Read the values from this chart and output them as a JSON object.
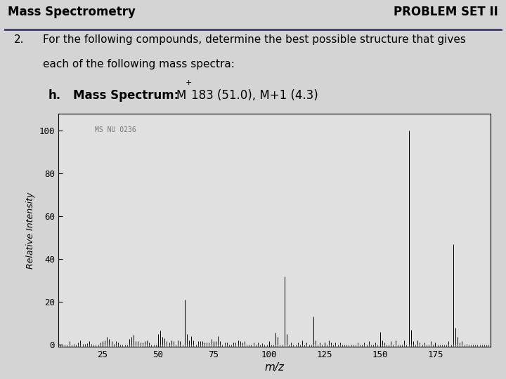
{
  "title_left": "Mass Spectrometry",
  "title_right": "PROBLEM SET II",
  "problem_number": "2.",
  "problem_text_line1": "For the following compounds, determine the best possible structure that gives",
  "problem_text_line2": "each of the following mass spectra:",
  "sub_label": "h.",
  "watermark": "MS NU 0236",
  "ylabel": "Relative Intensity",
  "xlabel": "m/z",
  "xlim": [
    5,
    200
  ],
  "ylim": [
    -1,
    108
  ],
  "ytick_labels": [
    "0",
    "20",
    "40",
    "60",
    "80",
    "100"
  ],
  "ytick_vals": [
    0,
    20,
    40,
    60,
    80,
    100
  ],
  "xtick_vals": [
    25,
    50,
    75,
    100,
    125,
    150,
    175
  ],
  "bg_color": "#d4d4d4",
  "plot_bg_color": "#e0e0e0",
  "header_line_color": "#3a3a7a",
  "peaks": [
    [
      10,
      1.5
    ],
    [
      12,
      0.5
    ],
    [
      14,
      1.0
    ],
    [
      15,
      2.0
    ],
    [
      16,
      0.3
    ],
    [
      17,
      0.5
    ],
    [
      18,
      0.8
    ],
    [
      19,
      1.5
    ],
    [
      20,
      0.5
    ],
    [
      24,
      1.0
    ],
    [
      25,
      1.5
    ],
    [
      26,
      2.0
    ],
    [
      27,
      3.5
    ],
    [
      28,
      2.5
    ],
    [
      29,
      1.5
    ],
    [
      30,
      0.5
    ],
    [
      31,
      1.5
    ],
    [
      32,
      1.0
    ],
    [
      37,
      2.5
    ],
    [
      38,
      3.5
    ],
    [
      39,
      4.5
    ],
    [
      40,
      1.5
    ],
    [
      41,
      1.5
    ],
    [
      42,
      1.0
    ],
    [
      43,
      1.0
    ],
    [
      44,
      1.5
    ],
    [
      45,
      2.0
    ],
    [
      46,
      1.0
    ],
    [
      50,
      5.0
    ],
    [
      51,
      6.5
    ],
    [
      52,
      3.5
    ],
    [
      53,
      3.0
    ],
    [
      54,
      1.5
    ],
    [
      55,
      1.0
    ],
    [
      56,
      2.0
    ],
    [
      57,
      1.5
    ],
    [
      59,
      2.0
    ],
    [
      60,
      1.5
    ],
    [
      62,
      21.0
    ],
    [
      63,
      5.0
    ],
    [
      64,
      2.0
    ],
    [
      65,
      4.0
    ],
    [
      66,
      2.0
    ],
    [
      68,
      1.5
    ],
    [
      69,
      1.5
    ],
    [
      70,
      1.5
    ],
    [
      71,
      1.0
    ],
    [
      72,
      1.0
    ],
    [
      73,
      1.0
    ],
    [
      74,
      2.5
    ],
    [
      75,
      1.5
    ],
    [
      76,
      1.5
    ],
    [
      77,
      4.0
    ],
    [
      78,
      1.5
    ],
    [
      80,
      1.0
    ],
    [
      81,
      1.0
    ],
    [
      84,
      1.0
    ],
    [
      85,
      1.0
    ],
    [
      86,
      2.0
    ],
    [
      87,
      1.5
    ],
    [
      88,
      1.0
    ],
    [
      89,
      1.5
    ],
    [
      93,
      1.0
    ],
    [
      95,
      1.0
    ],
    [
      97,
      0.8
    ],
    [
      100,
      1.5
    ],
    [
      103,
      5.5
    ],
    [
      104,
      3.5
    ],
    [
      107,
      32.0
    ],
    [
      108,
      5.0
    ],
    [
      110,
      1.0
    ],
    [
      113,
      1.0
    ],
    [
      115,
      2.0
    ],
    [
      117,
      1.0
    ],
    [
      120,
      13.0
    ],
    [
      121,
      2.0
    ],
    [
      123,
      1.0
    ],
    [
      125,
      1.0
    ],
    [
      127,
      2.0
    ],
    [
      128,
      1.0
    ],
    [
      130,
      1.0
    ],
    [
      132,
      1.0
    ],
    [
      140,
      1.0
    ],
    [
      143,
      1.0
    ],
    [
      145,
      1.5
    ],
    [
      148,
      1.0
    ],
    [
      150,
      6.0
    ],
    [
      151,
      2.0
    ],
    [
      152,
      1.0
    ],
    [
      155,
      1.5
    ],
    [
      157,
      2.0
    ],
    [
      161,
      2.0
    ],
    [
      163,
      100.0
    ],
    [
      164,
      7.0
    ],
    [
      165,
      1.5
    ],
    [
      167,
      2.0
    ],
    [
      168,
      1.0
    ],
    [
      170,
      1.0
    ],
    [
      173,
      1.5
    ],
    [
      181,
      1.5
    ],
    [
      183,
      47.0
    ],
    [
      184,
      8.0
    ],
    [
      185,
      3.5
    ],
    [
      186,
      1.0
    ],
    [
      187,
      1.5
    ],
    [
      189,
      0.5
    ]
  ]
}
